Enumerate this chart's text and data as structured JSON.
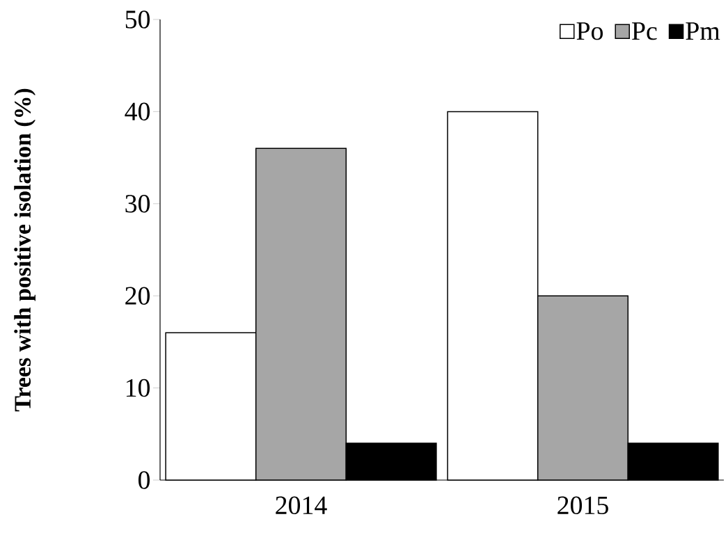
{
  "chart_data": {
    "type": "bar",
    "ylabel": "Trees with  positive isolation (%)",
    "categories": [
      "2014",
      "2015"
    ],
    "series": [
      {
        "name": "Po",
        "color": "#ffffff",
        "values": [
          16,
          40
        ]
      },
      {
        "name": "Pc",
        "color": "#a6a6a6",
        "values": [
          36,
          20
        ]
      },
      {
        "name": "Pm",
        "color": "#000000",
        "values": [
          4,
          4
        ]
      }
    ],
    "ylim": [
      0,
      50
    ],
    "yticks": [
      0,
      10,
      20,
      30,
      40,
      50
    ],
    "legend": "top right"
  }
}
